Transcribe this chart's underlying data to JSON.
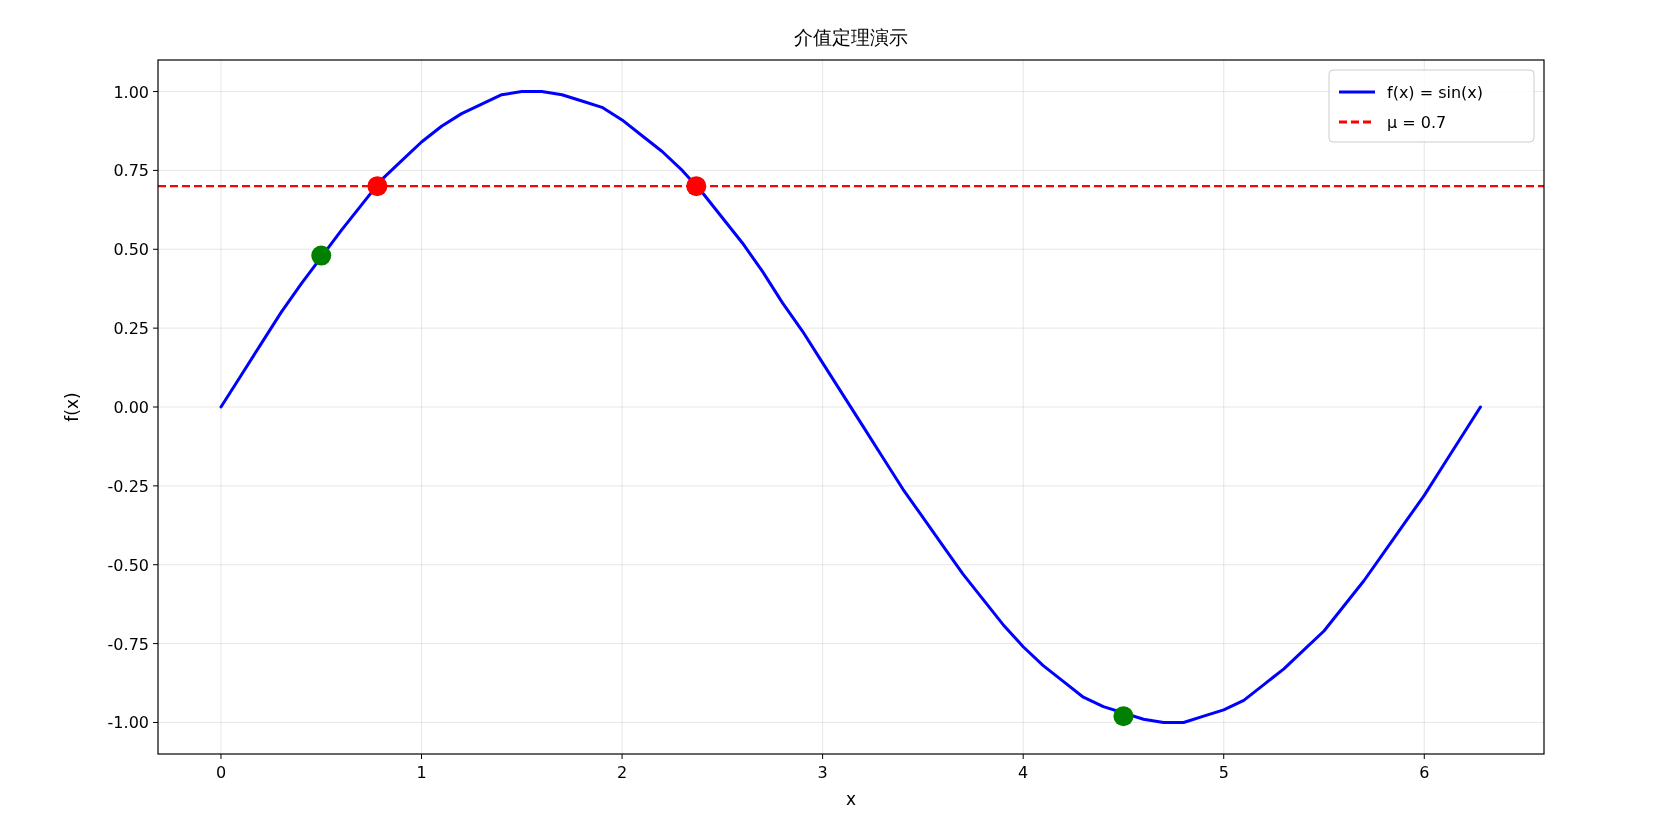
{
  "chart_data": {
    "type": "line",
    "title": "介值定理演示",
    "xlabel": "x",
    "ylabel": "f(x)",
    "xlim": [
      -0.314,
      6.597
    ],
    "ylim": [
      -1.1,
      1.1
    ],
    "xticks": [
      0,
      1,
      2,
      3,
      4,
      5,
      6
    ],
    "yticks": [
      {
        "value": -1,
        "label": "-1.00"
      },
      {
        "value": -0.75,
        "label": "-0.75"
      },
      {
        "value": -0.5,
        "label": "-0.50"
      },
      {
        "value": -0.25,
        "label": "-0.25"
      },
      {
        "value": 0,
        "label": "0.00"
      },
      {
        "value": 0.25,
        "label": "0.25"
      },
      {
        "value": 0.5,
        "label": "0.50"
      },
      {
        "value": 0.75,
        "label": "0.75"
      },
      {
        "value": 1,
        "label": "1.00"
      }
    ],
    "grid": true,
    "legend": "top right",
    "series": [
      {
        "type": "line",
        "name": "f(x) = sin(x)",
        "color": "#0000ff",
        "line_style": "solid",
        "x": [
          0,
          0.1,
          0.2,
          0.3,
          0.4,
          0.6,
          0.7,
          0.8,
          0.9,
          1.0,
          1.1,
          1.2,
          1.3,
          1.4,
          1.5,
          1.6,
          1.7,
          1.8,
          1.9,
          2.0,
          2.1,
          2.2,
          2.3,
          2.4,
          2.5,
          2.6,
          2.7,
          2.8,
          2.9,
          3.0,
          3.1,
          3.2,
          3.3,
          3.4,
          3.5,
          3.6,
          3.7,
          3.8,
          3.9,
          4.0,
          4.1,
          4.2,
          4.3,
          4.4,
          4.6,
          4.7,
          4.8,
          4.9,
          5.0,
          5.1,
          5.2,
          5.3,
          5.4,
          5.5,
          5.6,
          5.7,
          5.8,
          5.9,
          6.0,
          6.1,
          6.2,
          6.28
        ],
        "values": [
          0,
          0.1,
          0.2,
          0.3,
          0.39,
          0.56,
          0.64,
          0.72,
          0.78,
          0.84,
          0.89,
          0.93,
          0.96,
          0.99,
          1.0,
          1.0,
          0.99,
          0.97,
          0.95,
          0.91,
          0.86,
          0.81,
          0.75,
          0.68,
          0.6,
          0.52,
          0.43,
          0.33,
          0.24,
          0.14,
          0.04,
          -0.06,
          -0.16,
          -0.26,
          -0.35,
          -0.44,
          -0.53,
          -0.61,
          -0.69,
          -0.76,
          -0.82,
          -0.87,
          -0.92,
          -0.95,
          -0.99,
          -1.0,
          -1.0,
          -0.98,
          -0.96,
          -0.93,
          -0.88,
          -0.83,
          -0.77,
          -0.71,
          -0.63,
          -0.55,
          -0.46,
          -0.37,
          -0.28,
          -0.18,
          -0.08,
          0.0
        ]
      },
      {
        "type": "scatter",
        "color": "#008000",
        "marker": "circle",
        "x": [
          0.5,
          4.5
        ],
        "values": [
          0.48,
          -0.98
        ]
      },
      {
        "type": "scatter",
        "color": "#ff0000",
        "marker": "circle",
        "x": [
          0.78,
          2.37
        ],
        "values": [
          0.7,
          0.7
        ]
      }
    ],
    "ref_lines": [
      {
        "axis": "y",
        "value": 0.7,
        "label": "μ = 0.7",
        "color": "#ff0000",
        "line_style": "dashed"
      }
    ]
  }
}
